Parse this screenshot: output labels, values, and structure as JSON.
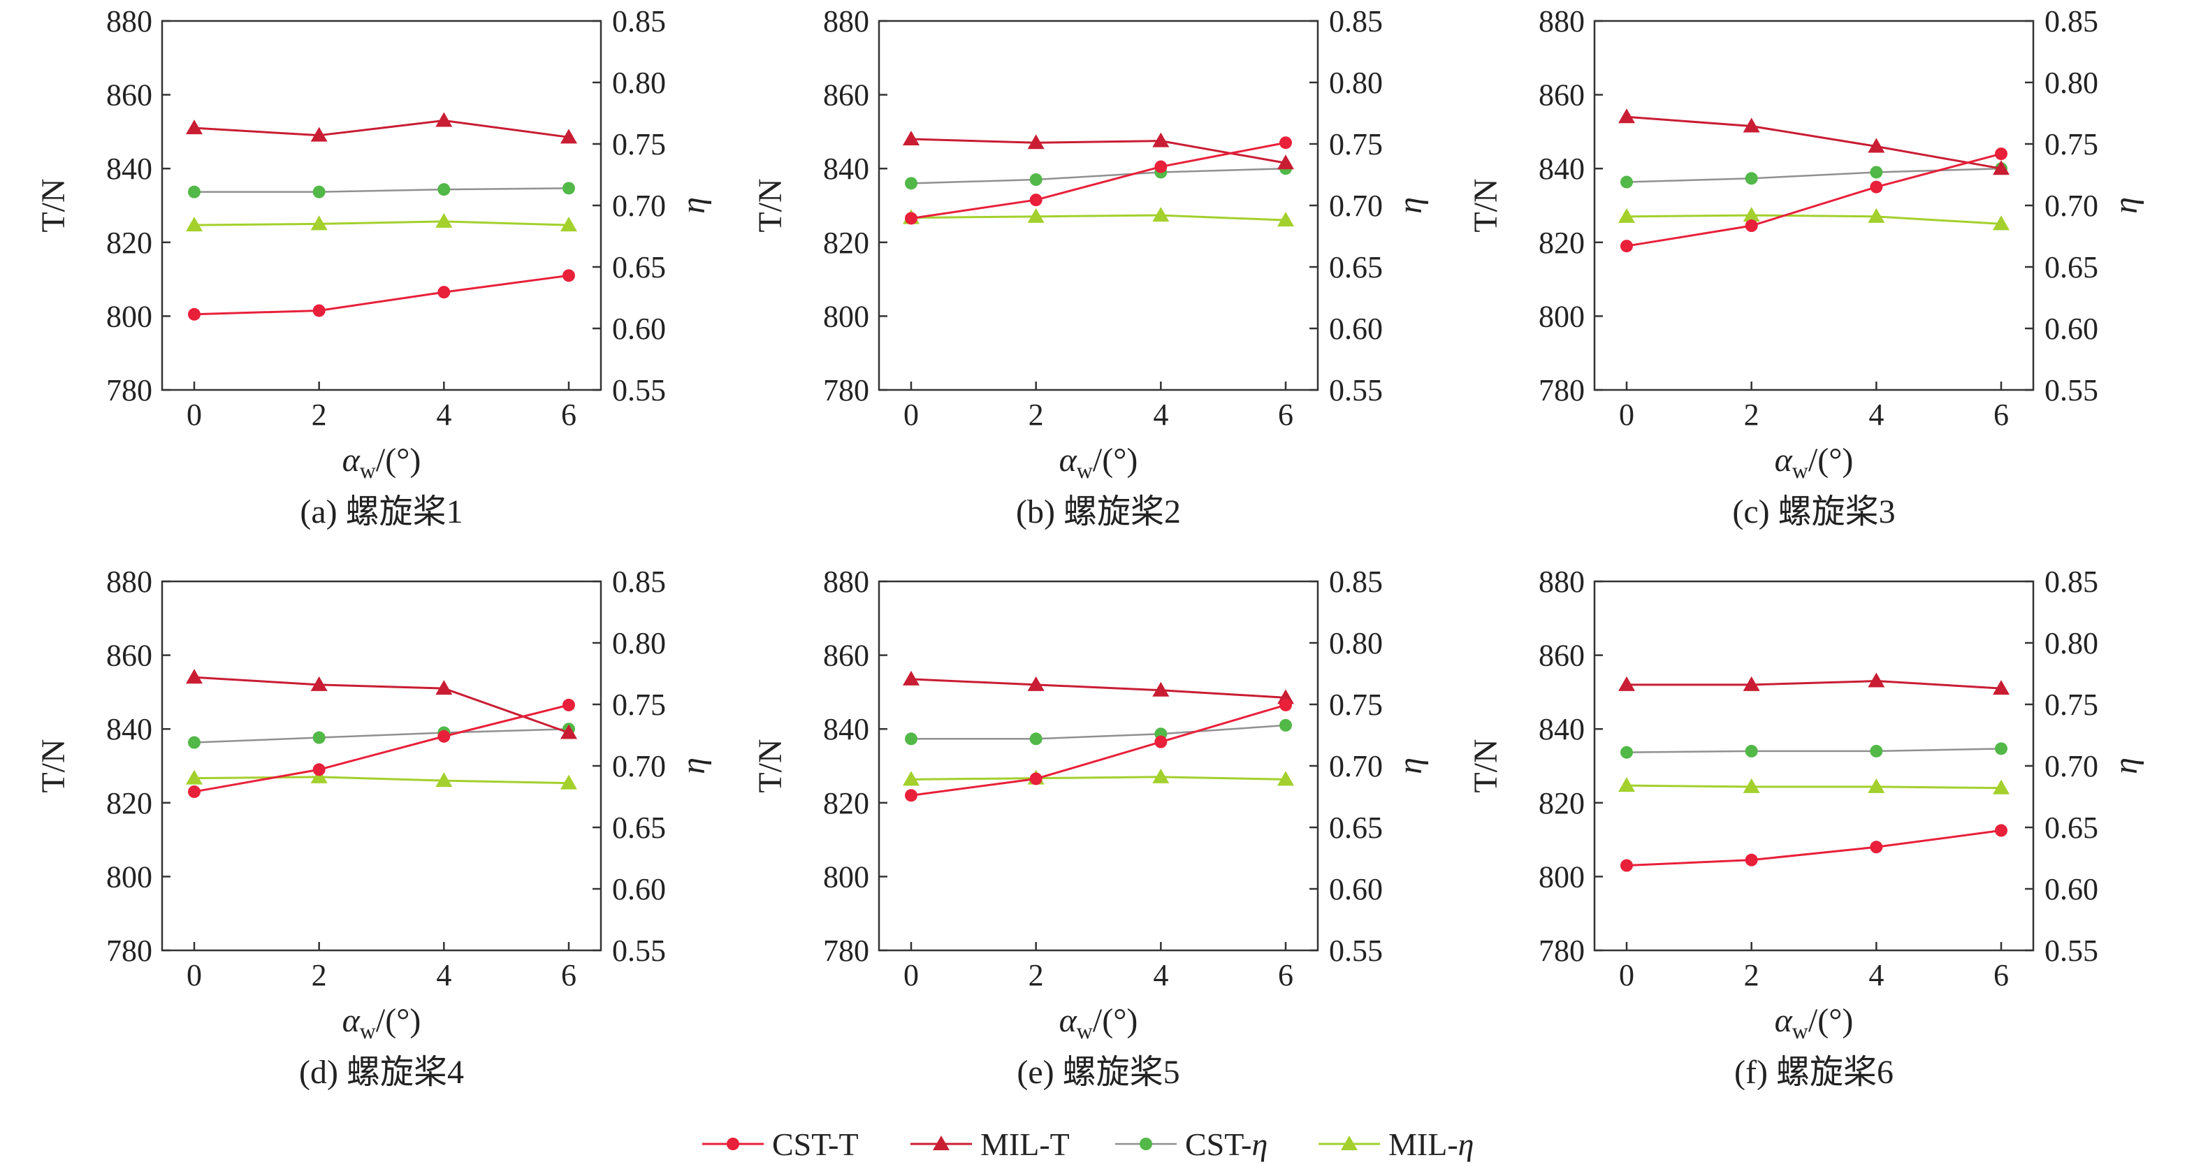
{
  "figure": {
    "legend": [
      {
        "label": "CST-T",
        "series": "CST-T"
      },
      {
        "label": "MIL-T",
        "series": "MIL-T"
      },
      {
        "label": "CST-",
        "italic": "η",
        "series": "CST-eta"
      },
      {
        "label": "MIL-",
        "italic": "η",
        "series": "MIL-eta"
      }
    ]
  },
  "colors": {
    "cst_t": "#e8203a",
    "mil_t": "#c91d33",
    "cst_eta": "#52b848",
    "mil_eta": "#a3d02c",
    "eta_line": "#909090",
    "axis": "#333333"
  },
  "chart_data": [
    {
      "type": "line",
      "caption": "(a) 螺旋桨1",
      "x": [
        0,
        2,
        4,
        6
      ],
      "xticks": [
        "0",
        "2",
        "4",
        "6"
      ],
      "xlabel_main": "α",
      "xlabel_sub": "w",
      "xlabel_unit": "/(°)",
      "ylabel_left": "T/N",
      "ylim_left": [
        780,
        880
      ],
      "yticks_left": [
        "780",
        "800",
        "820",
        "840",
        "860",
        "880"
      ],
      "ylabel_right": "η",
      "ylim_right": [
        0.55,
        0.85
      ],
      "yticks_right": [
        "0.55",
        "0.60",
        "0.65",
        "0.70",
        "0.75",
        "0.80",
        "0.85"
      ],
      "series": [
        {
          "name": "CST-T",
          "axis": "left",
          "values": [
            800.5,
            801.5,
            806.5,
            811
          ]
        },
        {
          "name": "MIL-T",
          "axis": "left",
          "values": [
            851,
            849,
            853,
            848.5
          ]
        },
        {
          "name": "CST-η",
          "axis": "right",
          "values": [
            0.711,
            0.711,
            0.713,
            0.714
          ]
        },
        {
          "name": "MIL-η",
          "axis": "right",
          "values": [
            0.684,
            0.685,
            0.687,
            0.684
          ]
        }
      ]
    },
    {
      "type": "line",
      "caption": "(b) 螺旋桨2",
      "x": [
        0,
        2,
        4,
        6
      ],
      "xticks": [
        "0",
        "2",
        "4",
        "6"
      ],
      "xlabel_main": "α",
      "xlabel_sub": "w",
      "xlabel_unit": "/(°)",
      "ylabel_left": "T/N",
      "ylim_left": [
        780,
        880
      ],
      "yticks_left": [
        "780",
        "800",
        "820",
        "840",
        "860",
        "880"
      ],
      "ylabel_right": "η",
      "ylim_right": [
        0.55,
        0.85
      ],
      "yticks_right": [
        "0.55",
        "0.60",
        "0.65",
        "0.70",
        "0.75",
        "0.80",
        "0.85"
      ],
      "series": [
        {
          "name": "CST-T",
          "axis": "left",
          "values": [
            826.5,
            831.5,
            840.5,
            847
          ]
        },
        {
          "name": "MIL-T",
          "axis": "left",
          "values": [
            848,
            847,
            847.5,
            841.5
          ]
        },
        {
          "name": "CST-η",
          "axis": "right",
          "values": [
            0.718,
            0.721,
            0.727,
            0.73
          ]
        },
        {
          "name": "MIL-η",
          "axis": "right",
          "values": [
            0.69,
            0.691,
            0.692,
            0.688
          ]
        }
      ]
    },
    {
      "type": "line",
      "caption": "(c) 螺旋桨3",
      "x": [
        0,
        2,
        4,
        6
      ],
      "xticks": [
        "0",
        "2",
        "4",
        "6"
      ],
      "xlabel_main": "α",
      "xlabel_sub": "w",
      "xlabel_unit": "/(°)",
      "ylabel_left": "T/N",
      "ylim_left": [
        780,
        880
      ],
      "yticks_left": [
        "780",
        "800",
        "820",
        "840",
        "860",
        "880"
      ],
      "ylabel_right": "η",
      "ylim_right": [
        0.55,
        0.85
      ],
      "yticks_right": [
        "0.55",
        "0.60",
        "0.65",
        "0.70",
        "0.75",
        "0.80",
        "0.85"
      ],
      "series": [
        {
          "name": "CST-T",
          "axis": "left",
          "values": [
            819,
            824.5,
            835,
            844
          ]
        },
        {
          "name": "MIL-T",
          "axis": "left",
          "values": [
            854,
            851.5,
            846,
            840
          ]
        },
        {
          "name": "CST-η",
          "axis": "right",
          "values": [
            0.719,
            0.722,
            0.727,
            0.73
          ]
        },
        {
          "name": "MIL-η",
          "axis": "right",
          "values": [
            0.691,
            0.692,
            0.691,
            0.685
          ]
        }
      ]
    },
    {
      "type": "line",
      "caption": "(d) 螺旋桨4",
      "x": [
        0,
        2,
        4,
        6
      ],
      "xticks": [
        "0",
        "2",
        "4",
        "6"
      ],
      "xlabel_main": "α",
      "xlabel_sub": "w",
      "xlabel_unit": "/(°)",
      "ylabel_left": "T/N",
      "ylim_left": [
        780,
        880
      ],
      "yticks_left": [
        "780",
        "800",
        "820",
        "840",
        "860",
        "880"
      ],
      "ylabel_right": "η",
      "ylim_right": [
        0.55,
        0.85
      ],
      "yticks_right": [
        "0.55",
        "0.60",
        "0.65",
        "0.70",
        "0.75",
        "0.80",
        "0.85"
      ],
      "series": [
        {
          "name": "CST-T",
          "axis": "left",
          "values": [
            823,
            829,
            838,
            846.5
          ]
        },
        {
          "name": "MIL-T",
          "axis": "left",
          "values": [
            854,
            852,
            851,
            839
          ]
        },
        {
          "name": "CST-η",
          "axis": "right",
          "values": [
            0.719,
            0.723,
            0.727,
            0.73
          ]
        },
        {
          "name": "MIL-η",
          "axis": "right",
          "values": [
            0.69,
            0.691,
            0.688,
            0.686
          ]
        }
      ]
    },
    {
      "type": "line",
      "caption": "(e) 螺旋桨5",
      "x": [
        0,
        2,
        4,
        6
      ],
      "xticks": [
        "0",
        "2",
        "4",
        "6"
      ],
      "xlabel_main": "α",
      "xlabel_sub": "w",
      "xlabel_unit": "/(°)",
      "ylabel_left": "T/N",
      "ylim_left": [
        780,
        880
      ],
      "yticks_left": [
        "780",
        "800",
        "820",
        "840",
        "860",
        "880"
      ],
      "ylabel_right": "η",
      "ylim_right": [
        0.55,
        0.85
      ],
      "yticks_right": [
        "0.55",
        "0.60",
        "0.65",
        "0.70",
        "0.75",
        "0.80",
        "0.85"
      ],
      "series": [
        {
          "name": "CST-T",
          "axis": "left",
          "values": [
            822,
            826.5,
            836.5,
            846.5
          ]
        },
        {
          "name": "MIL-T",
          "axis": "left",
          "values": [
            853.5,
            852,
            850.5,
            848.5
          ]
        },
        {
          "name": "CST-η",
          "axis": "right",
          "values": [
            0.722,
            0.722,
            0.726,
            0.733
          ]
        },
        {
          "name": "MIL-η",
          "axis": "right",
          "values": [
            0.689,
            0.69,
            0.691,
            0.689
          ]
        }
      ]
    },
    {
      "type": "line",
      "caption": "(f) 螺旋桨6",
      "x": [
        0,
        2,
        4,
        6
      ],
      "xticks": [
        "0",
        "2",
        "4",
        "6"
      ],
      "xlabel_main": "α",
      "xlabel_sub": "w",
      "xlabel_unit": "/(°)",
      "ylabel_left": "T/N",
      "ylim_left": [
        780,
        880
      ],
      "yticks_left": [
        "780",
        "800",
        "820",
        "840",
        "860",
        "880"
      ],
      "ylabel_right": "η",
      "ylim_right": [
        0.55,
        0.85
      ],
      "yticks_right": [
        "0.55",
        "0.60",
        "0.65",
        "0.70",
        "0.75",
        "0.80",
        "0.85"
      ],
      "series": [
        {
          "name": "CST-T",
          "axis": "left",
          "values": [
            803,
            804.5,
            808,
            812.5
          ]
        },
        {
          "name": "MIL-T",
          "axis": "left",
          "values": [
            852,
            852,
            853,
            851
          ]
        },
        {
          "name": "CST-η",
          "axis": "right",
          "values": [
            0.711,
            0.712,
            0.712,
            0.714
          ]
        },
        {
          "name": "MIL-η",
          "axis": "right",
          "values": [
            0.684,
            0.683,
            0.683,
            0.682
          ]
        }
      ]
    }
  ]
}
